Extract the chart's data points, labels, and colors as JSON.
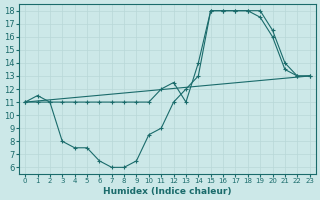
{
  "xlabel": "Humidex (Indice chaleur)",
  "background_color": "#cce8e8",
  "line_color": "#1a6b6b",
  "xlim": [
    -0.5,
    23.5
  ],
  "ylim": [
    5.5,
    18.5
  ],
  "xticks": [
    0,
    1,
    2,
    3,
    4,
    5,
    6,
    7,
    8,
    9,
    10,
    11,
    12,
    13,
    14,
    15,
    16,
    17,
    18,
    19,
    20,
    21,
    22,
    23
  ],
  "yticks": [
    6,
    7,
    8,
    9,
    10,
    11,
    12,
    13,
    14,
    15,
    16,
    17,
    18
  ],
  "line1_x": [
    0,
    1,
    2,
    3,
    4,
    5,
    6,
    7,
    8,
    9,
    10,
    11,
    12,
    13,
    14,
    15,
    16,
    17,
    18,
    19,
    20,
    21,
    22,
    23
  ],
  "line1_y": [
    11,
    11,
    11,
    8,
    7.5,
    7.5,
    6.5,
    6,
    6,
    6.5,
    8.5,
    9,
    11,
    12,
    13,
    18,
    18,
    18,
    18,
    17.5,
    16,
    13.5,
    13,
    13
  ],
  "line2_x": [
    0,
    1,
    2,
    3,
    4,
    5,
    6,
    7,
    8,
    9,
    10,
    11,
    12,
    13,
    14,
    15,
    16,
    17,
    18,
    19,
    20,
    21,
    22,
    23
  ],
  "line2_y": [
    11,
    11.5,
    11,
    11,
    11,
    11,
    11,
    11,
    11,
    11,
    11,
    12,
    12.5,
    11,
    14,
    18,
    18,
    18,
    18,
    18,
    16.5,
    14,
    13,
    13
  ],
  "line3_x": [
    0,
    23
  ],
  "line3_y": [
    11,
    13
  ]
}
